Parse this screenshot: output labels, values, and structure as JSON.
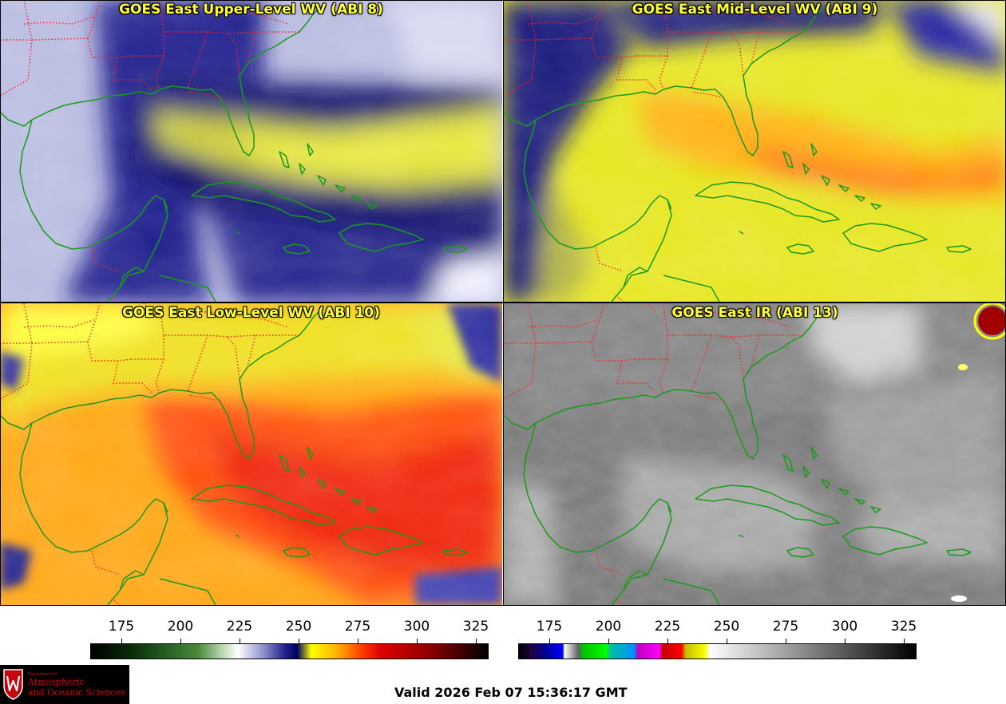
{
  "panels": [
    {
      "title": "GOES East Upper-Level WV (ABI 8)"
    },
    {
      "title": "GOES East Mid-Level WV (ABI 9)"
    },
    {
      "title": "GOES East Low-Level WV (ABI 10)"
    },
    {
      "title": "GOES East IR (ABI 13)"
    }
  ],
  "colorbar_wv": {
    "ticks": [
      "175",
      "200",
      "225",
      "250",
      "275",
      "300",
      "325"
    ]
  },
  "colorbar_ir": {
    "ticks": [
      "175",
      "200",
      "225",
      "250",
      "275",
      "300",
      "325"
    ]
  },
  "logo": {
    "department": "Department of",
    "line1": "Atmospheric",
    "line2": "and Oceanic Sciences"
  },
  "valid_time": "Valid 2026 Feb 07 15:36:17 GMT",
  "colors": {
    "coast": "#1a9a1a",
    "states": "#ff2020",
    "title": "#ffff33"
  }
}
